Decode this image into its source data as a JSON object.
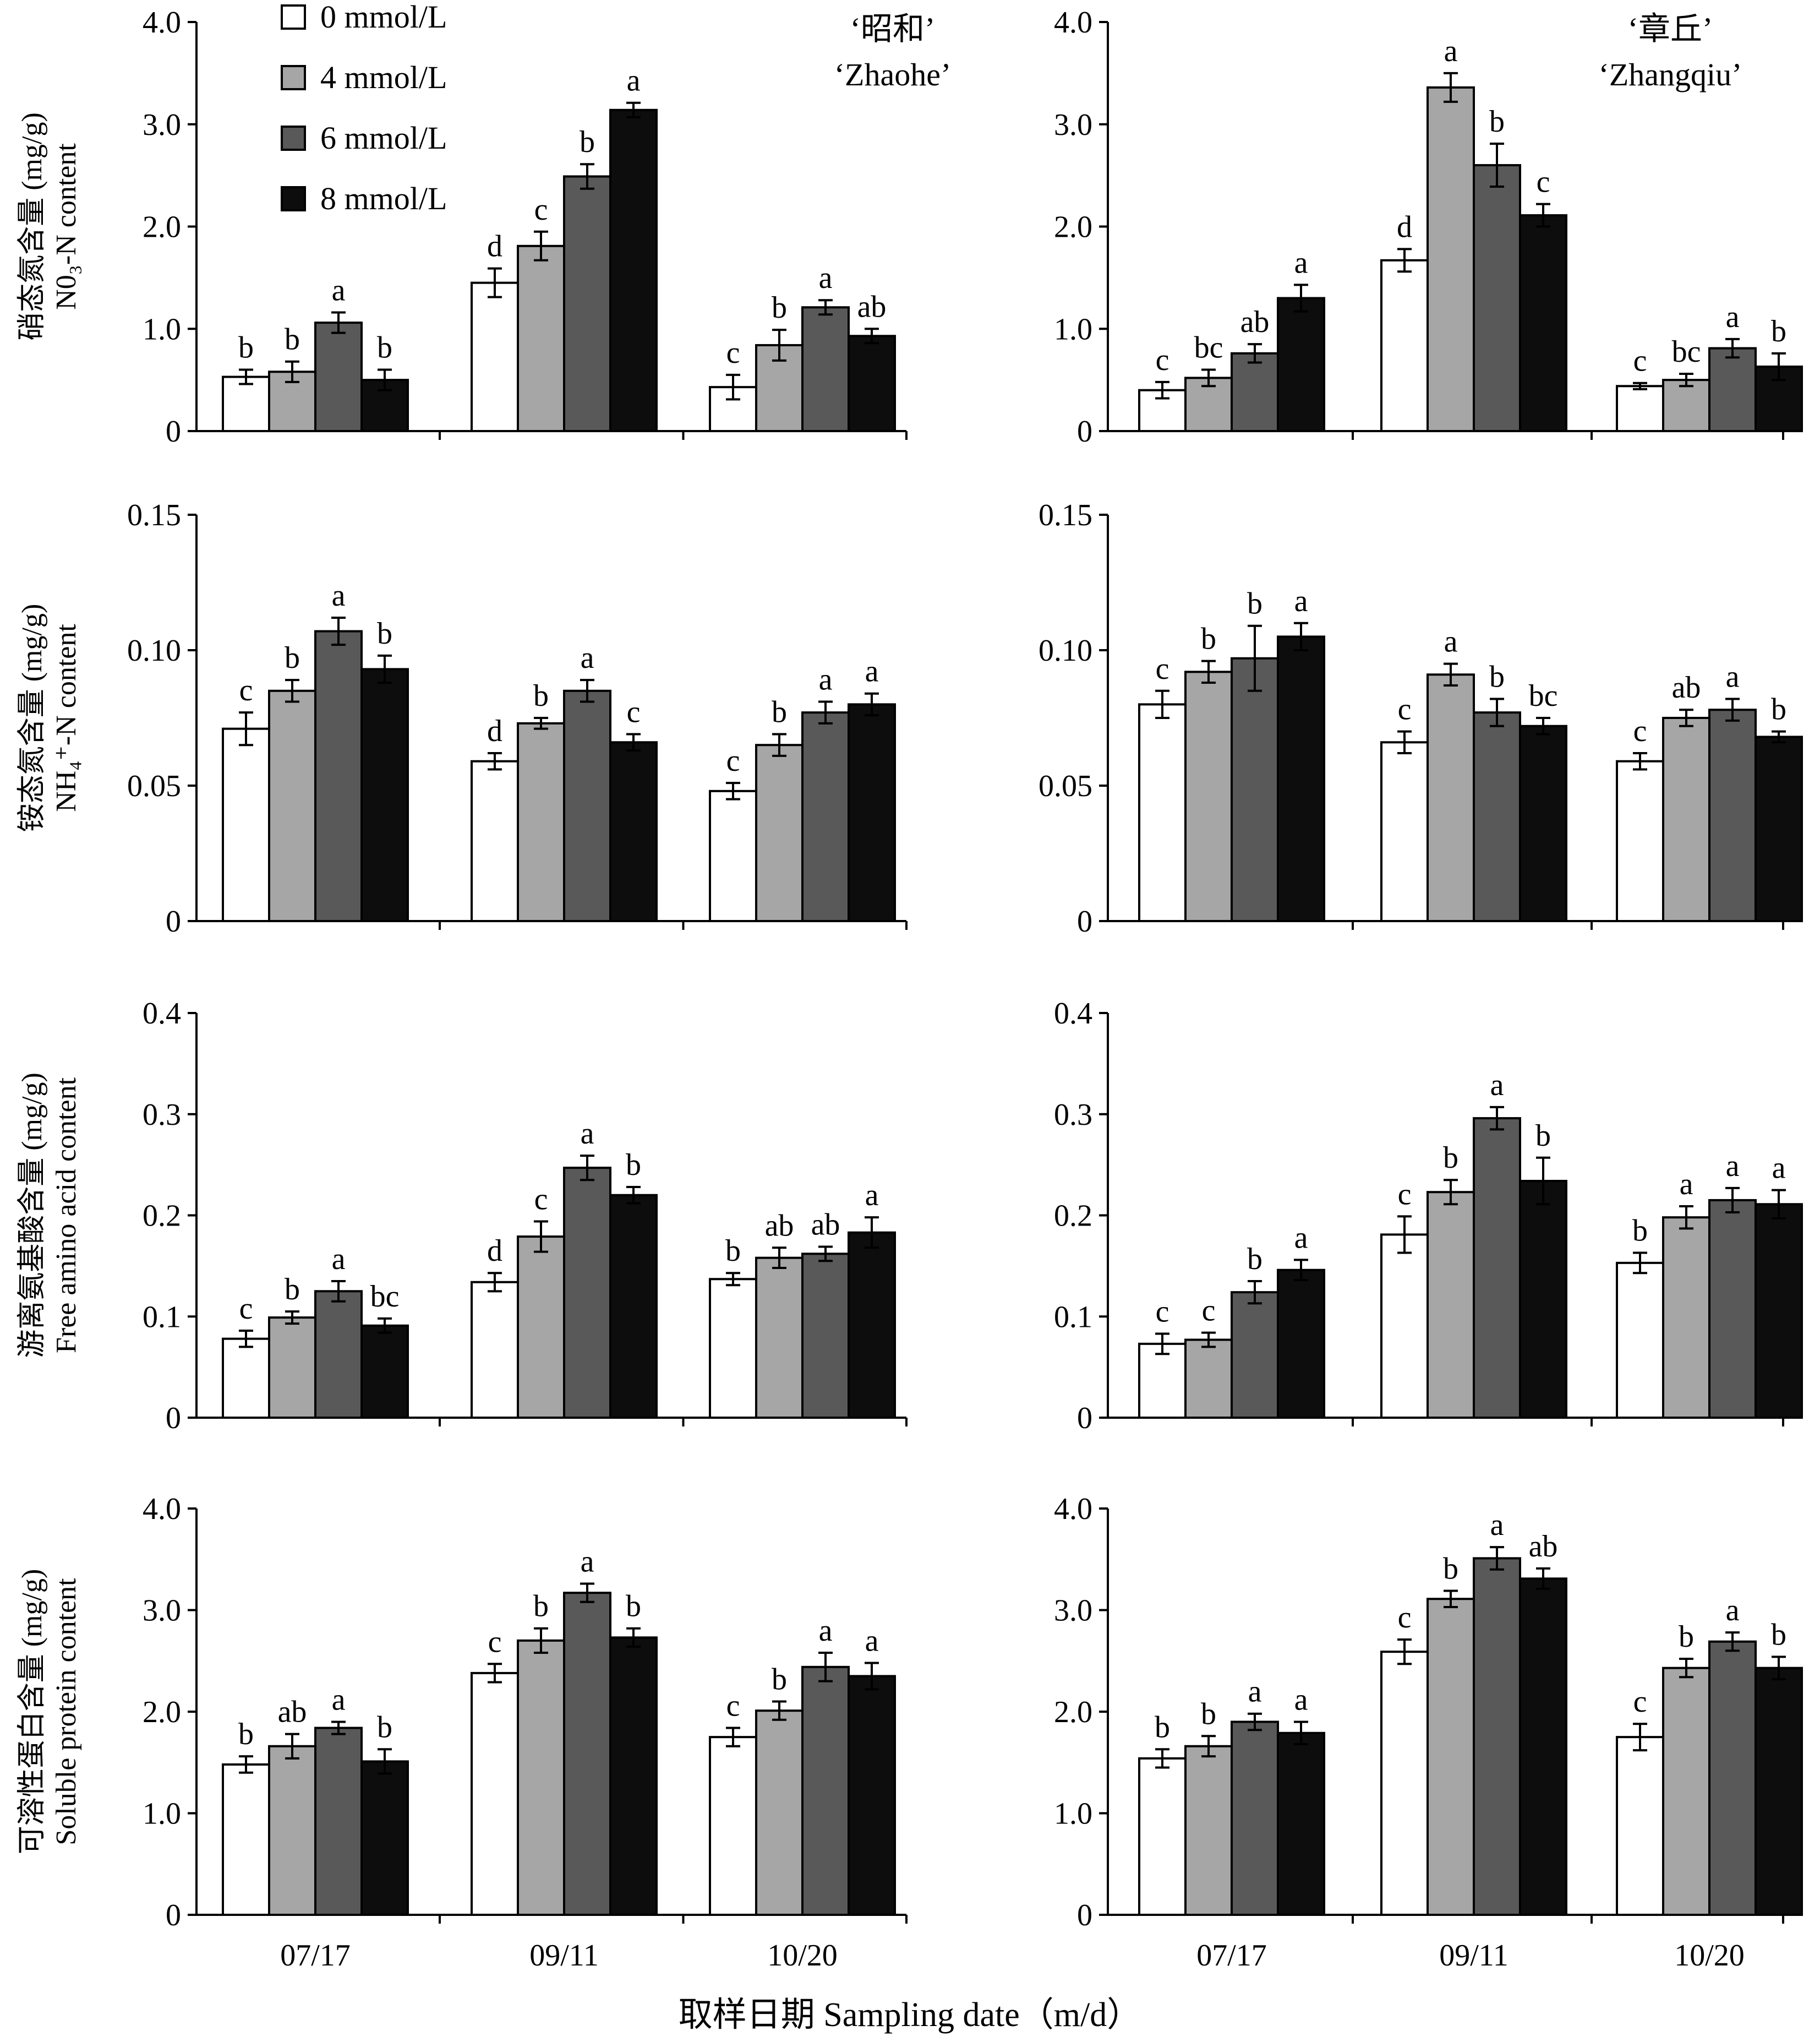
{
  "chart_data": {
    "type": "bar",
    "title": "",
    "categories": [
      "07/17",
      "09/11",
      "10/20"
    ],
    "xlabel": "取样日期 Sampling date（m/d）",
    "legend": {
      "placement": "top-left",
      "entries": [
        {
          "name": "0 mmol/L",
          "color": "#ffffff"
        },
        {
          "name": "4 mmol/L",
          "color": "#a6a6a6"
        },
        {
          "name": "6 mmol/L",
          "color": "#595959"
        },
        {
          "name": "8 mmol/L",
          "color": "#0d0d0d"
        }
      ]
    },
    "varieties": [
      {
        "cn": "‘昭和’",
        "en": "‘Zhaohe’"
      },
      {
        "cn": "‘章丘’",
        "en": "‘Zhangqiu’"
      }
    ],
    "rows": [
      {
        "ylabel_cn": "硝态氮含量 (mg/g)",
        "ylabel_en": "N0₃-N content",
        "ylim": [
          0,
          4.0
        ],
        "yticks": [
          "0",
          "1.0",
          "2.0",
          "3.0",
          "4.0"
        ],
        "yticks_values": [
          0,
          1,
          2,
          3,
          4
        ],
        "panels": [
          {
            "variety": "Zhaohe",
            "values": [
              [
                0.53,
                0.58,
                1.06,
                0.5
              ],
              [
                1.45,
                1.81,
                2.49,
                3.14
              ],
              [
                0.43,
                0.84,
                1.21,
                0.93
              ]
            ],
            "errors": [
              [
                0.07,
                0.1,
                0.1,
                0.1
              ],
              [
                0.14,
                0.14,
                0.12,
                0.07
              ],
              [
                0.12,
                0.15,
                0.07,
                0.07
              ]
            ],
            "letters": [
              [
                "b",
                "b",
                "a",
                "b"
              ],
              [
                "d",
                "c",
                "b",
                "a"
              ],
              [
                "c",
                "b",
                "a",
                "ab"
              ]
            ]
          },
          {
            "variety": "Zhangqiu",
            "values": [
              [
                0.4,
                0.52,
                0.76,
                1.3
              ],
              [
                1.67,
                3.36,
                2.6,
                2.11
              ],
              [
                0.44,
                0.5,
                0.81,
                0.63
              ]
            ],
            "errors": [
              [
                0.08,
                0.08,
                0.09,
                0.13
              ],
              [
                0.11,
                0.14,
                0.21,
                0.11
              ],
              [
                0.03,
                0.06,
                0.09,
                0.13
              ]
            ],
            "letters": [
              [
                "c",
                "bc",
                "ab",
                "a"
              ],
              [
                "d",
                "a",
                "b",
                "c"
              ],
              [
                "c",
                "bc",
                "a",
                "b"
              ]
            ]
          }
        ]
      },
      {
        "ylabel_cn": "铵态氮含量 (mg/g)",
        "ylabel_en": "NH₄⁺-N content",
        "ylim": [
          0,
          0.15
        ],
        "yticks": [
          "0",
          "0.05",
          "0.10",
          "0.15"
        ],
        "yticks_values": [
          0,
          0.05,
          0.1,
          0.15
        ],
        "panels": [
          {
            "variety": "Zhaohe",
            "values": [
              [
                0.071,
                0.085,
                0.107,
                0.093
              ],
              [
                0.059,
                0.073,
                0.085,
                0.066
              ],
              [
                0.048,
                0.065,
                0.077,
                0.08
              ]
            ],
            "errors": [
              [
                0.006,
                0.004,
                0.005,
                0.005
              ],
              [
                0.003,
                0.002,
                0.004,
                0.003
              ],
              [
                0.003,
                0.004,
                0.004,
                0.004
              ]
            ],
            "letters": [
              [
                "c",
                "b",
                "a",
                "b"
              ],
              [
                "d",
                "b",
                "a",
                "c"
              ],
              [
                "c",
                "b",
                "a",
                "a"
              ]
            ]
          },
          {
            "variety": "Zhangqiu",
            "values": [
              [
                0.08,
                0.092,
                0.097,
                0.105
              ],
              [
                0.066,
                0.091,
                0.077,
                0.072
              ],
              [
                0.059,
                0.075,
                0.078,
                0.068
              ]
            ],
            "errors": [
              [
                0.005,
                0.004,
                0.012,
                0.005
              ],
              [
                0.004,
                0.004,
                0.005,
                0.003
              ],
              [
                0.003,
                0.003,
                0.004,
                0.002
              ]
            ],
            "letters": [
              [
                "c",
                "b",
                "b",
                "a"
              ],
              [
                "c",
                "a",
                "b",
                "bc"
              ],
              [
                "c",
                "ab",
                "a",
                "b"
              ]
            ]
          }
        ]
      },
      {
        "ylabel_cn": "游离氨基酸含量 (mg/g)",
        "ylabel_en": "Free amino acid content",
        "ylim": [
          0,
          0.4
        ],
        "yticks": [
          "0",
          "0.1",
          "0.2",
          "0.3",
          "0.4"
        ],
        "yticks_values": [
          0,
          0.1,
          0.2,
          0.3,
          0.4
        ],
        "panels": [
          {
            "variety": "Zhaohe",
            "values": [
              [
                0.078,
                0.099,
                0.125,
                0.091
              ],
              [
                0.134,
                0.179,
                0.247,
                0.22
              ],
              [
                0.137,
                0.158,
                0.162,
                0.183
              ]
            ],
            "errors": [
              [
                0.008,
                0.006,
                0.01,
                0.007
              ],
              [
                0.009,
                0.015,
                0.012,
                0.008
              ],
              [
                0.006,
                0.01,
                0.007,
                0.015
              ]
            ],
            "letters": [
              [
                "c",
                "b",
                "a",
                "bc"
              ],
              [
                "d",
                "c",
                "a",
                "b"
              ],
              [
                "b",
                "ab",
                "ab",
                "a"
              ]
            ]
          },
          {
            "variety": "Zhangqiu",
            "values": [
              [
                0.073,
                0.077,
                0.124,
                0.146
              ],
              [
                0.181,
                0.223,
                0.296,
                0.234
              ],
              [
                0.153,
                0.198,
                0.215,
                0.211
              ]
            ],
            "errors": [
              [
                0.01,
                0.007,
                0.011,
                0.01
              ],
              [
                0.018,
                0.012,
                0.011,
                0.023
              ],
              [
                0.01,
                0.011,
                0.012,
                0.014
              ]
            ],
            "letters": [
              [
                "c",
                "c",
                "b",
                "a"
              ],
              [
                "c",
                "b",
                "a",
                "b"
              ],
              [
                "b",
                "a",
                "a",
                "a"
              ]
            ]
          }
        ]
      },
      {
        "ylabel_cn": "可溶性蛋白含量 (mg/g)",
        "ylabel_en": "Soluble protein content",
        "ylim": [
          0,
          4.0
        ],
        "yticks": [
          "0",
          "1.0",
          "2.0",
          "3.0",
          "4.0"
        ],
        "yticks_values": [
          0,
          1,
          2,
          3,
          4
        ],
        "panels": [
          {
            "variety": "Zhaohe",
            "values": [
              [
                1.48,
                1.66,
                1.84,
                1.51
              ],
              [
                2.38,
                2.7,
                3.17,
                2.73
              ],
              [
                1.75,
                2.01,
                2.44,
                2.35
              ]
            ],
            "errors": [
              [
                0.08,
                0.12,
                0.06,
                0.12
              ],
              [
                0.09,
                0.12,
                0.09,
                0.09
              ],
              [
                0.09,
                0.09,
                0.14,
                0.13
              ]
            ],
            "letters": [
              [
                "b",
                "ab",
                "a",
                "b"
              ],
              [
                "c",
                "b",
                "a",
                "b"
              ],
              [
                "c",
                "b",
                "a",
                "a"
              ]
            ]
          },
          {
            "variety": "Zhangqiu",
            "values": [
              [
                1.54,
                1.66,
                1.9,
                1.79
              ],
              [
                2.59,
                3.11,
                3.51,
                3.31
              ],
              [
                1.75,
                2.43,
                2.69,
                2.43
              ]
            ],
            "errors": [
              [
                0.09,
                0.1,
                0.08,
                0.11
              ],
              [
                0.12,
                0.08,
                0.11,
                0.1
              ],
              [
                0.13,
                0.09,
                0.09,
                0.11
              ]
            ],
            "letters": [
              [
                "b",
                "b",
                "a",
                "a"
              ],
              [
                "c",
                "b",
                "a",
                "ab"
              ],
              [
                "c",
                "b",
                "a",
                "b"
              ]
            ]
          }
        ]
      }
    ]
  }
}
